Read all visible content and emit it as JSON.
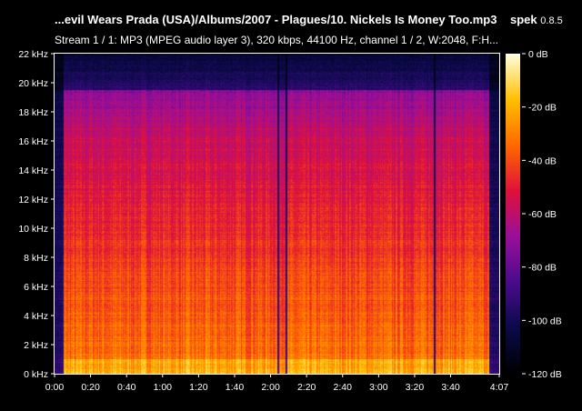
{
  "header": {
    "title": "...evil Wears Prada (USA)/Albums/2007 - Plagues/10. Nickels Is Money Too.mp3",
    "app_name": "spek",
    "app_version": "0.8.5",
    "subtitle": "Stream 1 / 1: MP3 (MPEG audio layer 3), 320 kbps, 44100 Hz, channel 1 / 2, W:2048, F:H..."
  },
  "chart_data": {
    "type": "heatmap",
    "title": "",
    "xlabel": "",
    "ylabel": "",
    "x_unit": "time (m:ss)",
    "xlim_seconds": [
      0,
      247
    ],
    "ylim_khz": [
      0,
      22
    ],
    "x_ticks": [
      {
        "value": 0,
        "label": "0:00"
      },
      {
        "value": 20,
        "label": "0:20"
      },
      {
        "value": 40,
        "label": "0:40"
      },
      {
        "value": 60,
        "label": "1:00"
      },
      {
        "value": 80,
        "label": "1:20"
      },
      {
        "value": 100,
        "label": "1:40"
      },
      {
        "value": 120,
        "label": "2:00"
      },
      {
        "value": 140,
        "label": "2:20"
      },
      {
        "value": 160,
        "label": "2:40"
      },
      {
        "value": 180,
        "label": "3:00"
      },
      {
        "value": 200,
        "label": "3:20"
      },
      {
        "value": 220,
        "label": "3:40"
      },
      {
        "value": 247,
        "label": "4:07"
      }
    ],
    "y_ticks": [
      {
        "value": 0,
        "label": "0 kHz"
      },
      {
        "value": 2,
        "label": "2 kHz"
      },
      {
        "value": 4,
        "label": "4 kHz"
      },
      {
        "value": 6,
        "label": "6 kHz"
      },
      {
        "value": 8,
        "label": "8 kHz"
      },
      {
        "value": 10,
        "label": "10 kHz"
      },
      {
        "value": 12,
        "label": "12 kHz"
      },
      {
        "value": 14,
        "label": "14 kHz"
      },
      {
        "value": 16,
        "label": "16 kHz"
      },
      {
        "value": 18,
        "label": "18 kHz"
      },
      {
        "value": 20,
        "label": "20 kHz"
      },
      {
        "value": 22,
        "label": "22 kHz"
      }
    ],
    "colorbar": {
      "range_db": [
        -120,
        0
      ],
      "ticks": [
        {
          "value": 0,
          "label": "0 dB"
        },
        {
          "value": -20,
          "label": "-20 dB"
        },
        {
          "value": -40,
          "label": "-40 dB"
        },
        {
          "value": -60,
          "label": "-60 dB"
        },
        {
          "value": -80,
          "label": "-80 dB"
        },
        {
          "value": -100,
          "label": "-100 dB"
        },
        {
          "value": -120,
          "label": "-120 dB"
        }
      ],
      "colors": [
        "#000000",
        "#0a0a4a",
        "#4a0b8c",
        "#9a0f9a",
        "#e0103a",
        "#ff6a00",
        "#ffc000",
        "#ffffe0"
      ]
    },
    "content_notes": {
      "audio_start_seconds": 5,
      "audio_end_seconds": 241,
      "lowpass_cutoff_khz": 19.5,
      "dropouts_seconds": [
        124,
        128.5,
        211
      ]
    }
  }
}
